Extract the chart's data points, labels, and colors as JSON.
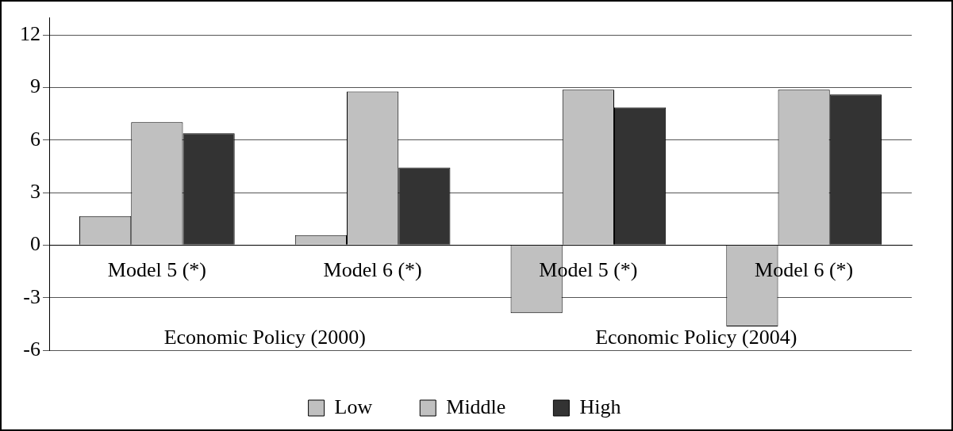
{
  "chart_data": {
    "type": "bar",
    "categories": [
      "Model 5 (*)",
      "Model 6 (*)",
      "Model 5 (*)",
      "Model 6 (*)"
    ],
    "series": [
      {
        "name": "Low",
        "color": "#c0c0c0",
        "values": [
          1.66,
          0.57,
          -3.89,
          -4.64
        ]
      },
      {
        "name": "Middle",
        "color": "#c0c0c0",
        "values": [
          7.02,
          8.77,
          8.87,
          8.87
        ]
      },
      {
        "name": "High",
        "color": "#333333",
        "values": [
          6.38,
          4.43,
          7.86,
          8.6
        ]
      }
    ],
    "ylim": [
      -6,
      13
    ],
    "yticks": [
      -6,
      -3,
      0,
      3,
      6,
      9,
      12
    ],
    "grid": "y",
    "legend": "bottom",
    "annotations": [
      "Economic Policy (2000)",
      "Economic Policy (2004)"
    ]
  }
}
